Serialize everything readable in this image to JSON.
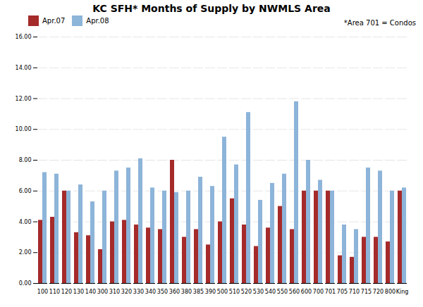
{
  "chart_data": {
    "type": "bar",
    "title": "KC SFH* Months of Supply by NWMLS Area",
    "annotation": "*Area 701 = Condos",
    "categories": [
      "100",
      "110",
      "120",
      "130",
      "140",
      "300",
      "310",
      "320",
      "330",
      "340",
      "350",
      "360",
      "380",
      "385",
      "390",
      "500",
      "510",
      "520",
      "530",
      "540",
      "550",
      "560",
      "600",
      "700",
      "701",
      "705",
      "710",
      "715",
      "720",
      "800",
      "King"
    ],
    "series": [
      {
        "name": "Apr.07",
        "color": "#A52A2A",
        "values": [
          4.1,
          4.3,
          6.0,
          3.3,
          3.1,
          2.2,
          4.0,
          4.1,
          3.8,
          3.6,
          3.5,
          8.0,
          3.0,
          3.5,
          2.5,
          4.0,
          5.5,
          3.8,
          2.4,
          3.6,
          5.0,
          3.5,
          6.0,
          6.0,
          6.0,
          1.8,
          1.7,
          3.0,
          3.0,
          2.7,
          6.0
        ]
      },
      {
        "name": "Apr.08",
        "color": "#8DB4D9",
        "values": [
          7.2,
          7.1,
          6.0,
          6.4,
          5.3,
          6.0,
          7.3,
          7.5,
          8.1,
          6.2,
          6.0,
          5.9,
          6.0,
          6.9,
          6.3,
          9.5,
          7.7,
          11.1,
          5.4,
          6.5,
          7.1,
          11.8,
          8.0,
          6.7,
          6.0,
          3.8,
          3.5,
          7.5,
          7.3,
          6.0,
          6.2
        ]
      }
    ],
    "ylim": [
      0.0,
      16.0
    ],
    "yticks": [
      {
        "value": 0,
        "label": "0.00"
      },
      {
        "value": 2,
        "label": "2.00"
      },
      {
        "value": 4,
        "label": "4.00"
      },
      {
        "value": 6,
        "label": "6.00"
      },
      {
        "value": 8,
        "label": "8.00"
      },
      {
        "value": 10,
        "label": "10.00"
      },
      {
        "value": 12,
        "label": "12.00"
      },
      {
        "value": 14,
        "label": "14.00"
      },
      {
        "value": 16,
        "label": "16.00"
      }
    ],
    "grid": true,
    "legend": "top"
  }
}
